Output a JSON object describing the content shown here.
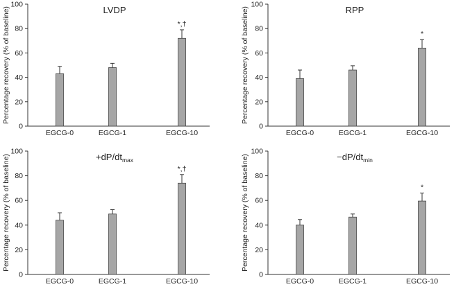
{
  "chart_data": [
    {
      "type": "bar",
      "title": "LVDP",
      "title_sub": "",
      "categories": [
        "EGCG-0",
        "EGCG-1",
        "EGCG-10"
      ],
      "values": [
        43,
        48,
        72
      ],
      "errors": [
        6,
        3.5,
        7
      ],
      "annotations": [
        "",
        "",
        "*,†"
      ],
      "ylabel": "Percentage recovery (% of baseline)",
      "xlabel": "",
      "ylim": [
        0,
        100
      ],
      "yticks": [
        0,
        20,
        40,
        60,
        80,
        100
      ],
      "bar_color": "#a6a6a6"
    },
    {
      "type": "bar",
      "title": "RPP",
      "title_sub": "",
      "categories": [
        "EGCG-0",
        "EGCG-1",
        "EGCG-10"
      ],
      "values": [
        39,
        46,
        64
      ],
      "errors": [
        7,
        3.5,
        7
      ],
      "annotations": [
        "",
        "",
        "*"
      ],
      "ylabel": "Percentage recovery (% of baseline)",
      "xlabel": "",
      "ylim": [
        0,
        100
      ],
      "yticks": [
        0,
        20,
        40,
        60,
        80,
        100
      ],
      "bar_color": "#a6a6a6"
    },
    {
      "type": "bar",
      "title": "+dP/dt",
      "title_sub": "max",
      "categories": [
        "EGCG-0",
        "EGCG-1",
        "EGCG-10"
      ],
      "values": [
        44,
        49,
        74
      ],
      "errors": [
        6,
        3.5,
        7
      ],
      "annotations": [
        "",
        "",
        "*,†"
      ],
      "ylabel": "Percentage recovery (% of baseline)",
      "xlabel": "",
      "ylim": [
        0,
        100
      ],
      "yticks": [
        0,
        20,
        40,
        60,
        80,
        100
      ],
      "bar_color": "#a6a6a6"
    },
    {
      "type": "bar",
      "title": "−dP/dt",
      "title_sub": "min",
      "categories": [
        "EGCG-0",
        "EGCG-1",
        "EGCG-10"
      ],
      "values": [
        40,
        46.5,
        59.5
      ],
      "errors": [
        4.5,
        2.5,
        6.5
      ],
      "annotations": [
        "",
        "",
        "*"
      ],
      "ylabel": "Percentage recovery (% of baseline)",
      "xlabel": "",
      "ylim": [
        0,
        100
      ],
      "yticks": [
        0,
        20,
        40,
        60,
        80,
        100
      ],
      "bar_color": "#a6a6a6"
    }
  ]
}
